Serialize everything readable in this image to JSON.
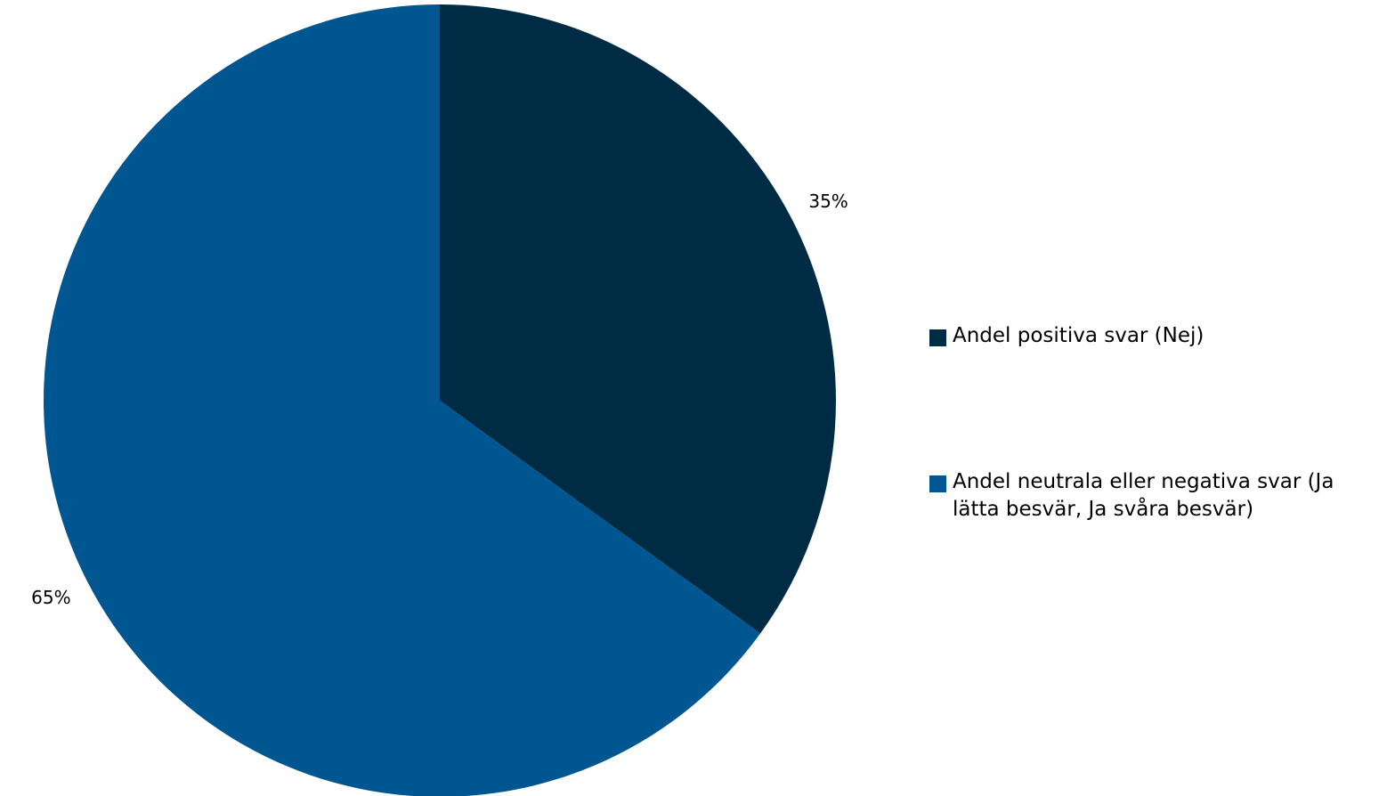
{
  "chart_data": {
    "type": "pie",
    "title": "",
    "series": [
      {
        "name": "Andel positiva svar (Nej)",
        "value": 35,
        "label": "35%",
        "color": "#002B45"
      },
      {
        "name": "Andel neutrala eller negativa svar (Ja lätta besvär, Ja svåra besvär)",
        "value": 65,
        "label": "65%",
        "color": "#005691"
      }
    ],
    "legend_position": "right",
    "start_angle": "12 o'clock",
    "direction": "clockwise"
  }
}
